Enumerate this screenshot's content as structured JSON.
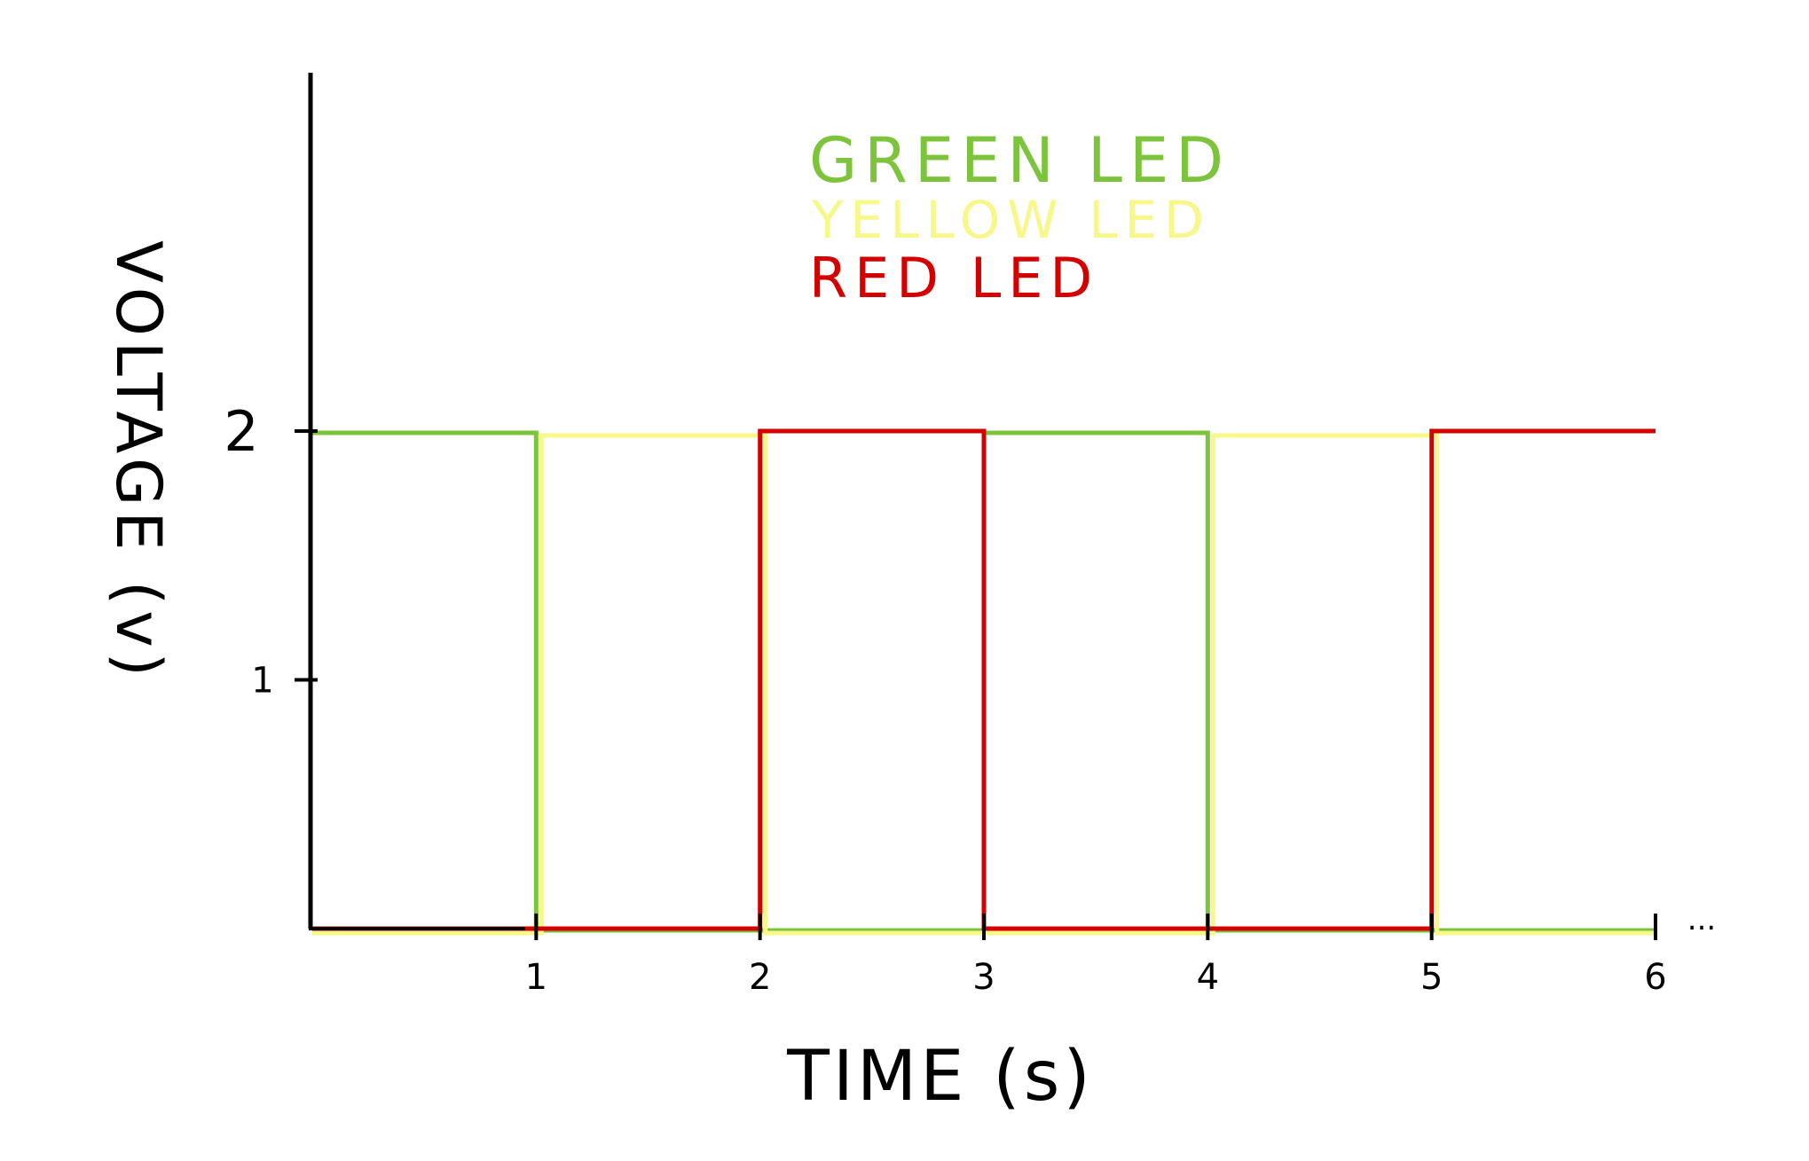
{
  "chart_data": {
    "type": "line",
    "step": true,
    "xlabel": "TIME (s)",
    "ylabel": "VOLTAGE (v)",
    "xlim": [
      0,
      6
    ],
    "ylim": [
      0,
      2.4
    ],
    "x_ticks": [
      "1",
      "2",
      "3",
      "4",
      "5",
      "6"
    ],
    "y_ticks": [
      "1",
      "2"
    ],
    "continuation_mark": "...",
    "legend_position": "top-center",
    "series": [
      {
        "name": "GREEN LED",
        "color": "#7cc43c",
        "points": [
          [
            0,
            2
          ],
          [
            1,
            2
          ],
          [
            1,
            0
          ],
          [
            3,
            0
          ],
          [
            3,
            2
          ],
          [
            4,
            2
          ],
          [
            4,
            0
          ],
          [
            6,
            0
          ]
        ]
      },
      {
        "name": "YELLOW LED",
        "color": "#f7f78a",
        "points": [
          [
            0,
            0
          ],
          [
            1,
            0
          ],
          [
            1,
            2
          ],
          [
            2,
            2
          ],
          [
            2,
            0
          ],
          [
            4,
            0
          ],
          [
            4,
            2
          ],
          [
            5,
            2
          ],
          [
            5,
            0
          ],
          [
            6,
            0
          ]
        ]
      },
      {
        "name": "RED LED",
        "color": "#d40000",
        "points": [
          [
            0,
            0
          ],
          [
            2,
            0
          ],
          [
            2,
            2
          ],
          [
            3,
            2
          ],
          [
            3,
            0
          ],
          [
            5,
            0
          ],
          [
            5,
            2
          ],
          [
            6,
            2
          ]
        ]
      }
    ]
  }
}
